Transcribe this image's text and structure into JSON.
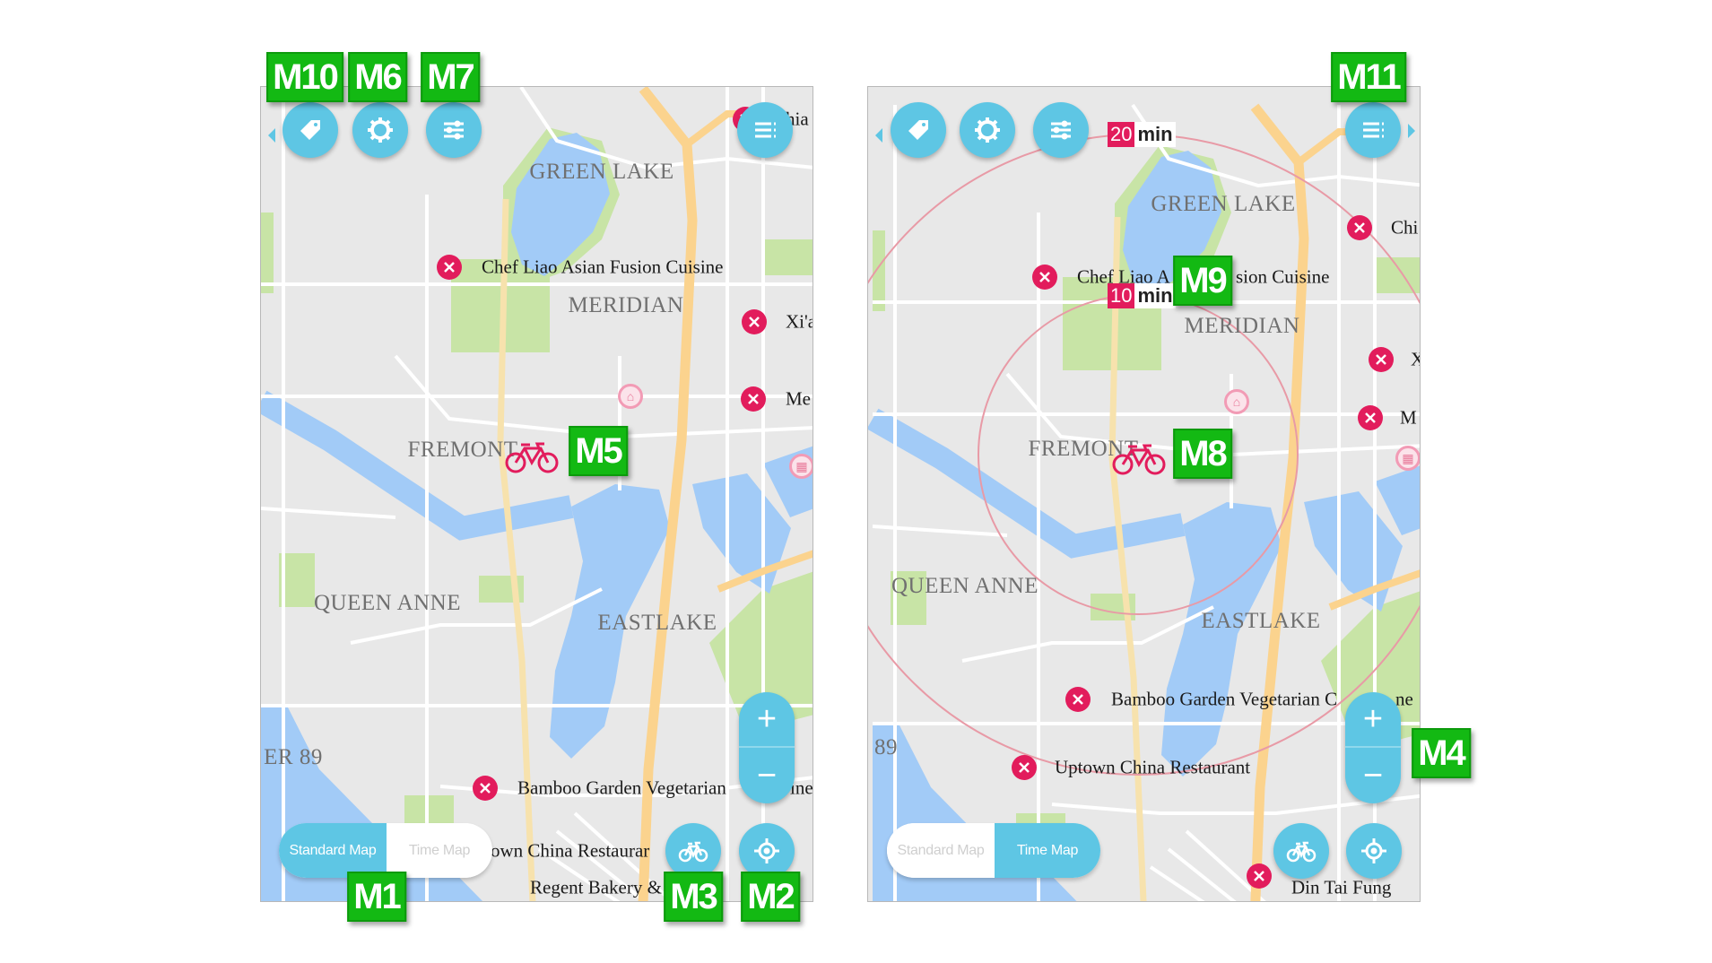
{
  "colors": {
    "button": "#5ec6e4",
    "poi": "#e21c5c",
    "annotation": "#13b913",
    "water": "#a2cbf7",
    "park": "#c8e4a6",
    "highway": "#fbd38e",
    "ring": "#e89aa6"
  },
  "icons": {
    "tag": "tag-icon",
    "settings": "gear-icon",
    "filter": "sliders-icon",
    "list": "list-icon",
    "bike": "bicycle-icon",
    "locate": "locate-icon",
    "poi": "restaurant-icon",
    "home": "home-icon",
    "building": "building-icon"
  },
  "left": {
    "places": {
      "green_lake": "GREEN LAKE",
      "meridian": "MERIDIAN",
      "fremont": "FREMONT",
      "queen_anne": "QUEEN ANNE",
      "eastlake": "EASTLAKE",
      "pier": "ER 89"
    },
    "pois": [
      "Chef Liao Asian Fusion Cuisine",
      "Xi'a",
      "Me",
      "Bamboo Garden Vegetarian",
      "ine",
      "own China Restaurar",
      "Regent Bakery &",
      "hia"
    ],
    "zoom": {
      "in": "+",
      "out": "−"
    },
    "toggle": {
      "standard": "Standard Map",
      "time": "Time Map",
      "active": "Standard Map"
    }
  },
  "right": {
    "places": {
      "green_lake": "GREEN LAKE",
      "meridian": "MERIDIAN",
      "fremont": "FREMONT",
      "queen_anne": "QUEEN ANNE",
      "eastlake": "EASTLAKE",
      "pier": "89"
    },
    "pois": [
      "Chef Liao A",
      "sion Cuisine",
      "Chi",
      "X",
      "M",
      "Bamboo Garden Vegetarian C",
      "ne",
      "Uptown China Restaurant",
      "Din Tai Fung"
    ],
    "time_rings": [
      {
        "value": "20",
        "unit": "min"
      },
      {
        "value": "10",
        "unit": "min"
      }
    ],
    "zoom": {
      "in": "+",
      "out": "−"
    },
    "toggle": {
      "standard": "Standard Map",
      "time": "Time Map",
      "active": "Time Map"
    }
  },
  "annotations": {
    "m1": "M1",
    "m2": "M2",
    "m3": "M3",
    "m4": "M4",
    "m5": "M5",
    "m6": "M6",
    "m7": "M7",
    "m8": "M8",
    "m9": "M9",
    "m10": "M10",
    "m11": "M11"
  }
}
